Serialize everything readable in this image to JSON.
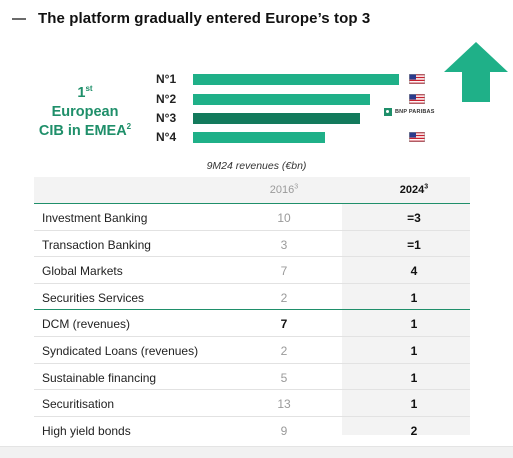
{
  "title": "The platform gradually entered Europe’s top 3",
  "cib_label": {
    "rank": "1",
    "rank_suffix": "st",
    "line1": "European",
    "line2": "CIB in EMEA",
    "footnote": "2"
  },
  "ranking": [
    {
      "label": "N°1",
      "value": 100,
      "color": "#1fb088",
      "marker": "us-flag-icon"
    },
    {
      "label": "N°2",
      "value": 86,
      "color": "#1fb088",
      "marker": "us-flag-icon"
    },
    {
      "label": "N°3",
      "value": 81,
      "color": "#137a5c",
      "marker": "bnp-paribas-logo",
      "marker_text": "BNP PARIBAS"
    },
    {
      "label": "N°4",
      "value": 64,
      "color": "#1fb088",
      "marker": "us-flag-icon"
    }
  ],
  "arrow": {
    "icon": "up-arrow-icon",
    "color": "#1fb088"
  },
  "subtitle": "9M24 revenues (€bn)",
  "table": {
    "headers": {
      "c2": "2016",
      "c2_sup": "3",
      "c3": "2024",
      "c3_sup": "3"
    },
    "rows": [
      {
        "label": "Investment Banking",
        "y2016": "10",
        "y2024": "=3"
      },
      {
        "label": "Transaction Banking",
        "y2016": "3",
        "y2024": "=1"
      },
      {
        "label": "Global Markets",
        "y2016": "7",
        "y2024": "4"
      },
      {
        "label": "Securities Services",
        "y2016": "2",
        "y2024": "1"
      },
      {
        "label": "DCM (revenues)",
        "y2016": "7",
        "y2024": "1"
      },
      {
        "label": "Syndicated Loans (revenues)",
        "y2016": "2",
        "y2024": "1"
      },
      {
        "label": "Sustainable financing",
        "y2016": "5",
        "y2024": "1"
      },
      {
        "label": "Securitisation",
        "y2016": "13",
        "y2024": "1"
      },
      {
        "label": "High yield bonds",
        "y2016": "9",
        "y2024": "2"
      }
    ]
  },
  "colors": {
    "accent": "#1f8f6a",
    "bar": "#1fb088",
    "bar_dark": "#137a5c"
  }
}
